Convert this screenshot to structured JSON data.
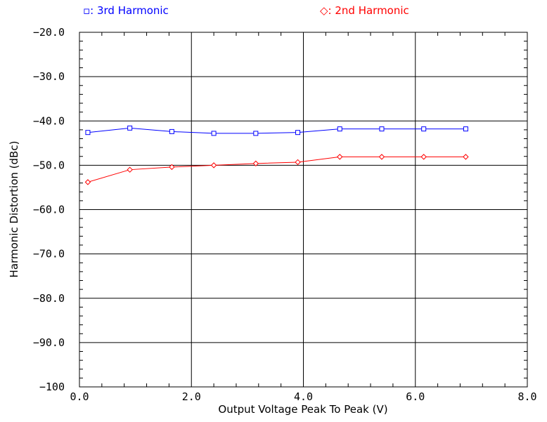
{
  "chart_data": {
    "type": "line",
    "title": "",
    "xlabel": "Output Voltage Peak To Peak (V)",
    "ylabel": "Harmonic Distortion (dBc)",
    "xlim": [
      0,
      8
    ],
    "ylim": [
      -100,
      -20
    ],
    "x_ticks": [
      0,
      2,
      4,
      6,
      8
    ],
    "x_tick_labels": [
      "0.0",
      "2.0",
      "4.0",
      "6.0",
      "8.0"
    ],
    "y_ticks": [
      -20,
      -30,
      -40,
      -50,
      -60,
      -70,
      -80,
      -90,
      -100
    ],
    "y_tick_labels": [
      "−20.0",
      "−30.0",
      "−40.0",
      "−50.0",
      "−60.0",
      "−70.0",
      "−80.0",
      "−90.0",
      "−100"
    ],
    "grid": true,
    "legend_position": "top",
    "series": [
      {
        "name": "3rd Harmonic",
        "legend_label": "▫: 3rd Harmonic",
        "marker": "square",
        "color": "#0000ff",
        "x": [
          0.15,
          0.9,
          1.65,
          2.4,
          3.15,
          3.9,
          4.65,
          5.4,
          6.15,
          6.9
        ],
        "y": [
          -42.6,
          -41.6,
          -42.4,
          -42.8,
          -42.8,
          -42.6,
          -41.8,
          -41.8,
          -41.8,
          -41.8
        ]
      },
      {
        "name": "2nd Harmonic",
        "legend_label": "◇: 2nd Harmonic",
        "marker": "diamond",
        "color": "#ff0000",
        "x": [
          0.15,
          0.9,
          1.65,
          2.4,
          3.15,
          3.9,
          4.65,
          5.4,
          6.15,
          6.9
        ],
        "y": [
          -53.8,
          -51.0,
          -50.4,
          -50.0,
          -49.6,
          -49.3,
          -48.1,
          -48.1,
          -48.1,
          -48.1
        ]
      }
    ]
  }
}
